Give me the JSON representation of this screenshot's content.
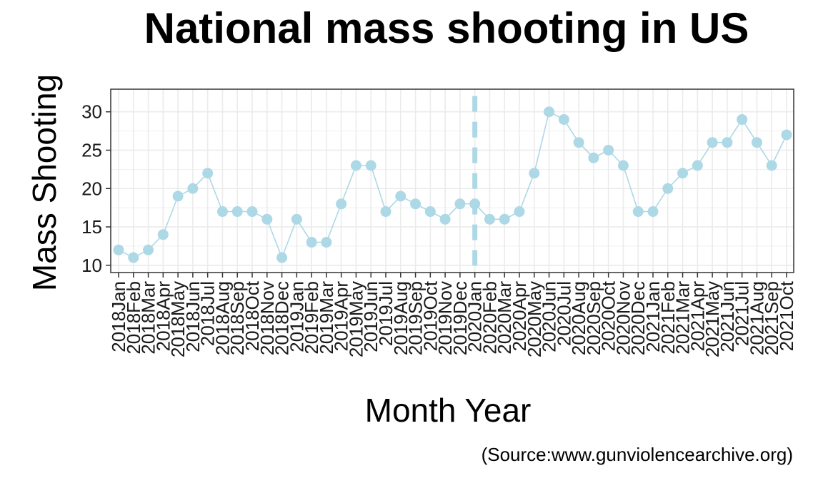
{
  "chart_data": {
    "type": "line",
    "title": "National mass shooting in US",
    "xlabel": "Month Year",
    "ylabel": "Mass Shooting",
    "caption": "(Source:www.gunviolencearchive.org)",
    "categories": [
      "2018Jan",
      "2018Feb",
      "2018Mar",
      "2018Apr",
      "2018May",
      "2018Jun",
      "2018Jul",
      "2018Aug",
      "2018Sep",
      "2018Oct",
      "2018Nov",
      "2018Dec",
      "2019Jan",
      "2019Feb",
      "2019Mar",
      "2019Apr",
      "2019May",
      "2019Jun",
      "2019Jul",
      "2019Aug",
      "2019Sep",
      "2019Oct",
      "2019Nov",
      "2019Dec",
      "2020Jan",
      "2020Feb",
      "2020Mar",
      "2020Apr",
      "2020May",
      "2020Jun",
      "2020Jul",
      "2020Aug",
      "2020Sep",
      "2020Oct",
      "2020Nov",
      "2020Dec",
      "2021Jan",
      "2021Feb",
      "2021Mar",
      "2021Apr",
      "2021May",
      "2021Jun",
      "2021Jul",
      "2021Aug",
      "2021Sep",
      "2021Oct"
    ],
    "series": [
      {
        "values": [
          12,
          11,
          12,
          14,
          19,
          20,
          22,
          17,
          17,
          17,
          16,
          11,
          16,
          13,
          13,
          18,
          23,
          23,
          17,
          19,
          18,
          17,
          16,
          18,
          18,
          16,
          16,
          17,
          22,
          30,
          29,
          26,
          24,
          25,
          23,
          17,
          17,
          20,
          22,
          23,
          26,
          26,
          29,
          26,
          23,
          27
        ]
      }
    ],
    "yticks": [
      10,
      15,
      20,
      25,
      30
    ],
    "ylim": [
      9.05,
      32.95
    ],
    "vline": {
      "x": "2020Jan",
      "style": "dashed"
    },
    "grid": true,
    "theme": "bw",
    "colors": {
      "series": "#add8e6",
      "grid": "#ebebeb",
      "border": "#333333"
    }
  }
}
